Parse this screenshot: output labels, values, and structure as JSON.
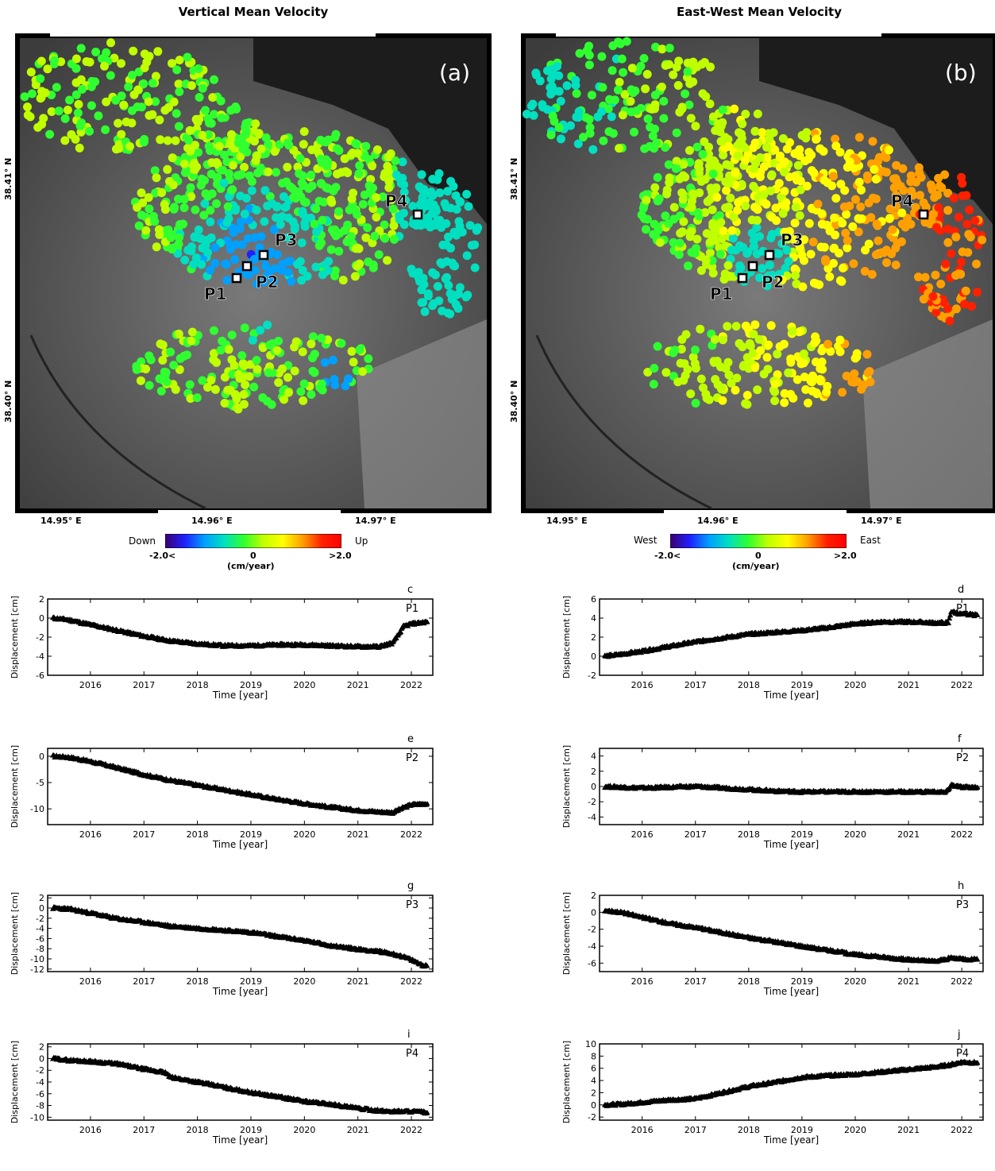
{
  "maps": [
    {
      "id": "a",
      "title": "Vertical Mean Velocity",
      "panel_label": "(a)",
      "lat_ticks": [
        "38.41° N",
        "38.40° N"
      ],
      "lon_ticks": [
        "14.95° E",
        "14.96° E",
        "14.97° E"
      ],
      "points": [
        "P1",
        "P2",
        "P3",
        "P4"
      ],
      "colorbar": {
        "left_label": "Down",
        "right_label": "Up",
        "min_label": "-2.0<",
        "mid_label": "0",
        "max_label": ">2.0",
        "unit": "(cm/year)"
      }
    },
    {
      "id": "b",
      "title": "East-West Mean Velocity",
      "panel_label": "(b)",
      "lat_ticks": [
        "38.41° N",
        "38.40° N"
      ],
      "lon_ticks": [
        "14.95° E",
        "14.96° E",
        "14.97° E"
      ],
      "points": [
        "P1",
        "P2",
        "P3",
        "P4"
      ],
      "colorbar": {
        "left_label": "West",
        "right_label": "East",
        "min_label": "-2.0<",
        "mid_label": "0",
        "max_label": ">2.0",
        "unit": "(cm/year)"
      }
    }
  ],
  "colors": {
    "colorbar": [
      "#3a0070",
      "#2020ff",
      "#00a0ff",
      "#00e0c0",
      "#30ff30",
      "#c0ff00",
      "#ffff00",
      "#ffa000",
      "#ff2000",
      "#ff0000"
    ],
    "marker_stroke": "#000000",
    "axis": "#000000"
  },
  "chart_data": [
    {
      "type": "scatter",
      "panel": "c",
      "point": "P1",
      "xlabel": "Time [year]",
      "ylabel": "Displacement [cm]",
      "xlim": [
        2015.2,
        2022.4
      ],
      "ylim": [
        -6,
        2
      ],
      "yticks": [
        2,
        0,
        -2,
        -4,
        -6
      ],
      "xticks": [
        2016,
        2017,
        2018,
        2019,
        2020,
        2021,
        2022
      ],
      "x": [
        2015.3,
        2015.6,
        2016.0,
        2016.5,
        2017.0,
        2017.5,
        2018.0,
        2018.5,
        2019.0,
        2019.5,
        2020.0,
        2020.5,
        2021.0,
        2021.4,
        2021.65,
        2021.75,
        2021.85,
        2022.0,
        2022.3
      ],
      "y": [
        0,
        -0.2,
        -0.7,
        -1.3,
        -1.9,
        -2.4,
        -2.7,
        -2.9,
        -2.9,
        -2.8,
        -2.8,
        -2.9,
        -3.0,
        -3.0,
        -2.6,
        -1.8,
        -0.9,
        -0.6,
        -0.4
      ]
    },
    {
      "type": "scatter",
      "panel": "d",
      "point": "P1",
      "xlabel": "Time [year]",
      "ylabel": "Displacement [cm]",
      "xlim": [
        2015.2,
        2022.4
      ],
      "ylim": [
        -2,
        6
      ],
      "yticks": [
        6,
        4,
        2,
        0,
        -2
      ],
      "xticks": [
        2016,
        2017,
        2018,
        2019,
        2020,
        2021,
        2022
      ],
      "x": [
        2015.3,
        2015.6,
        2016.0,
        2016.5,
        2017.0,
        2017.5,
        2018.0,
        2018.5,
        2019.0,
        2019.5,
        2020.0,
        2020.5,
        2021.0,
        2021.5,
        2021.75,
        2021.8,
        2022.0,
        2022.3
      ],
      "y": [
        0,
        0.2,
        0.5,
        1.0,
        1.5,
        1.9,
        2.3,
        2.5,
        2.7,
        3.0,
        3.4,
        3.6,
        3.6,
        3.5,
        3.5,
        4.7,
        4.4,
        4.3
      ]
    },
    {
      "type": "scatter",
      "panel": "e",
      "point": "P2",
      "xlabel": "Time [year]",
      "ylabel": "Displacement [cm]",
      "xlim": [
        2015.2,
        2022.4
      ],
      "ylim": [
        -13,
        1.5
      ],
      "yticks": [
        0,
        -5,
        -10
      ],
      "xticks": [
        2016,
        2017,
        2018,
        2019,
        2020,
        2021,
        2022
      ],
      "x": [
        2015.3,
        2015.6,
        2016.0,
        2016.5,
        2017.0,
        2017.5,
        2018.0,
        2018.5,
        2019.0,
        2019.5,
        2020.0,
        2020.5,
        2021.0,
        2021.4,
        2021.65,
        2021.85,
        2022.0,
        2022.3
      ],
      "y": [
        0,
        -0.2,
        -1.0,
        -2.2,
        -3.5,
        -4.6,
        -5.5,
        -6.4,
        -7.3,
        -8.2,
        -9.0,
        -9.7,
        -10.3,
        -10.6,
        -10.7,
        -9.8,
        -9.2,
        -9.0
      ]
    },
    {
      "type": "scatter",
      "panel": "f",
      "point": "P2",
      "xlabel": "Time [year]",
      "ylabel": "Displacement [cm]",
      "xlim": [
        2015.2,
        2022.4
      ],
      "ylim": [
        -5,
        5
      ],
      "yticks": [
        4,
        2,
        0,
        -2,
        -4
      ],
      "xticks": [
        2016,
        2017,
        2018,
        2019,
        2020,
        2021,
        2022
      ],
      "x": [
        2015.3,
        2015.6,
        2016.0,
        2016.5,
        2017.0,
        2017.5,
        2018.0,
        2018.5,
        2019.0,
        2019.5,
        2020.0,
        2020.5,
        2021.0,
        2021.5,
        2021.7,
        2021.8,
        2022.0,
        2022.3
      ],
      "y": [
        0,
        -0.1,
        -0.2,
        -0.1,
        0,
        -0.2,
        -0.4,
        -0.6,
        -0.7,
        -0.7,
        -0.7,
        -0.7,
        -0.7,
        -0.7,
        -0.8,
        0.2,
        -0.1,
        -0.1
      ]
    },
    {
      "type": "scatter",
      "panel": "g",
      "point": "P3",
      "xlabel": "Time [year]",
      "ylabel": "Displacement [cm]",
      "xlim": [
        2015.2,
        2022.4
      ],
      "ylim": [
        -12.5,
        2.5
      ],
      "yticks": [
        2,
        0,
        -2,
        -4,
        -6,
        -8,
        -10,
        -12
      ],
      "xticks": [
        2016,
        2017,
        2018,
        2019,
        2020,
        2021,
        2022
      ],
      "x": [
        2015.3,
        2015.6,
        2016.0,
        2016.5,
        2017.0,
        2017.5,
        2018.0,
        2018.5,
        2019.0,
        2019.5,
        2020.0,
        2020.5,
        2021.0,
        2021.5,
        2021.8,
        2022.0,
        2022.2,
        2022.3
      ],
      "y": [
        0,
        -0.2,
        -1.0,
        -2.1,
        -2.8,
        -3.6,
        -4.0,
        -4.4,
        -4.8,
        -5.6,
        -6.4,
        -7.4,
        -8.1,
        -8.7,
        -9.4,
        -10.2,
        -11.2,
        -11.4
      ]
    },
    {
      "type": "scatter",
      "panel": "h",
      "point": "P3",
      "xlabel": "Time [year]",
      "ylabel": "Displacement [cm]",
      "xlim": [
        2015.2,
        2022.4
      ],
      "ylim": [
        -7,
        2
      ],
      "yticks": [
        2,
        0,
        -2,
        -4,
        -6
      ],
      "xticks": [
        2016,
        2017,
        2018,
        2019,
        2020,
        2021,
        2022
      ],
      "x": [
        2015.3,
        2015.6,
        2016.0,
        2016.5,
        2017.0,
        2017.5,
        2018.0,
        2018.5,
        2019.0,
        2019.5,
        2020.0,
        2020.5,
        2021.0,
        2021.5,
        2021.8,
        2022.0,
        2022.3
      ],
      "y": [
        0.2,
        0,
        -0.6,
        -1.3,
        -1.8,
        -2.4,
        -3.0,
        -3.5,
        -4.0,
        -4.5,
        -5.0,
        -5.3,
        -5.6,
        -5.8,
        -5.4,
        -5.5,
        -5.6
      ]
    },
    {
      "type": "scatter",
      "panel": "i",
      "point": "P4",
      "xlabel": "Time [year]",
      "ylabel": "Displacement [cm]",
      "xlim": [
        2015.2,
        2022.4
      ],
      "ylim": [
        -10.5,
        2.5
      ],
      "yticks": [
        2,
        0,
        -2,
        -4,
        -6,
        -8,
        -10
      ],
      "xticks": [
        2016,
        2017,
        2018,
        2019,
        2020,
        2021,
        2022
      ],
      "x": [
        2015.3,
        2015.6,
        2016.0,
        2016.5,
        2017.0,
        2017.4,
        2017.5,
        2018.0,
        2018.5,
        2019.0,
        2019.5,
        2020.0,
        2020.5,
        2021.0,
        2021.5,
        2022.0,
        2022.3
      ],
      "y": [
        0,
        -0.3,
        -0.5,
        -0.9,
        -1.8,
        -2.4,
        -3.2,
        -4.0,
        -4.9,
        -5.8,
        -6.5,
        -7.3,
        -7.8,
        -8.5,
        -9.0,
        -9.0,
        -9.2
      ]
    },
    {
      "type": "scatter",
      "panel": "j",
      "point": "P4",
      "xlabel": "Time [year]",
      "ylabel": "Displacement [cm]",
      "xlim": [
        2015.2,
        2022.4
      ],
      "ylim": [
        -2.5,
        10
      ],
      "yticks": [
        10,
        8,
        6,
        4,
        2,
        0,
        -2
      ],
      "xticks": [
        2016,
        2017,
        2018,
        2019,
        2020,
        2021,
        2022
      ],
      "x": [
        2015.3,
        2015.6,
        2016.0,
        2016.5,
        2017.0,
        2017.5,
        2018.0,
        2018.5,
        2019.0,
        2019.5,
        2020.0,
        2020.5,
        2021.0,
        2021.5,
        2021.8,
        2022.0,
        2022.3
      ],
      "y": [
        0,
        0.1,
        0.4,
        0.8,
        1.0,
        2.0,
        3.0,
        3.7,
        4.5,
        4.8,
        5.0,
        5.4,
        5.8,
        6.2,
        6.6,
        7.0,
        6.9
      ]
    }
  ]
}
